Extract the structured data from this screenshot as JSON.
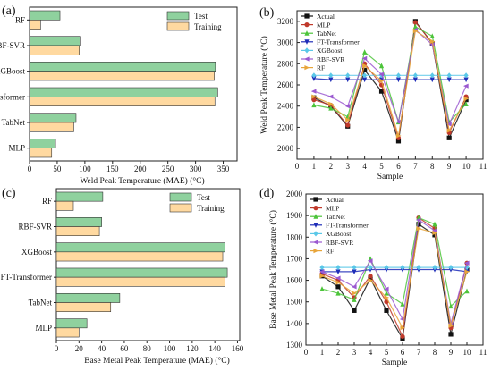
{
  "panel_labels": [
    "(a)",
    "(b)",
    "(c)",
    "(d)"
  ],
  "colors": {
    "test": "#8fd19e",
    "training": "#ffd9a0",
    "frame": "#222222",
    "series": {
      "Actual": "#111111",
      "MLP": "#c0392b",
      "TabNet": "#4cc43a",
      "FT-Transformer": "#1f2db8",
      "XGBoost": "#5ac8e8",
      "RBF-SVR": "#9b59d0",
      "RF": "#e8a53a"
    }
  },
  "chart_data": [
    {
      "type": "bar",
      "orientation": "horizontal",
      "xlabel": "Weld Peak Temperature (MAE) (°C)",
      "categories": [
        "RF",
        "RBF-SVR",
        "XGBoost",
        "FT-Transformer",
        "TabNet",
        "MLP"
      ],
      "series": [
        {
          "name": "Test",
          "values": [
            55,
            91,
            336,
            340,
            84,
            47
          ]
        },
        {
          "name": "Training",
          "values": [
            20,
            90,
            334,
            335,
            80,
            40
          ]
        }
      ],
      "xlim": [
        0,
        375
      ],
      "xticks": [
        0,
        50,
        100,
        150,
        200,
        250,
        300,
        350
      ],
      "legend": "top-right"
    },
    {
      "type": "line",
      "xlabel": "Sample",
      "ylabel": "Weld Peak Temperature (°C)",
      "x": [
        1,
        2,
        3,
        4,
        5,
        6,
        7,
        8,
        9,
        10
      ],
      "xlim": [
        0,
        11
      ],
      "ylim": [
        1900,
        3300
      ],
      "xticks": [
        0,
        1,
        2,
        3,
        4,
        5,
        6,
        7,
        8,
        9,
        10,
        11
      ],
      "yticks": [
        2000,
        2200,
        2400,
        2600,
        2800,
        3000,
        3200
      ],
      "series": [
        {
          "name": "Actual",
          "values": [
            2480,
            2400,
            2210,
            2740,
            2540,
            2070,
            3200,
            2990,
            2100,
            2460
          ]
        },
        {
          "name": "MLP",
          "values": [
            2460,
            2410,
            2220,
            2800,
            2600,
            2100,
            3190,
            3000,
            2150,
            2490
          ]
        },
        {
          "name": "TabNet",
          "values": [
            2410,
            2380,
            2300,
            2910,
            2780,
            2250,
            3150,
            3060,
            2250,
            2420
          ]
        },
        {
          "name": "FT-Transformer",
          "values": [
            2660,
            2650,
            2650,
            2650,
            2650,
            2650,
            2650,
            2650,
            2650,
            2650
          ]
        },
        {
          "name": "XGBoost",
          "values": [
            2690,
            2690,
            2690,
            2690,
            2690,
            2690,
            2690,
            2690,
            2690,
            2690
          ]
        },
        {
          "name": "RBF-SVR",
          "values": [
            2540,
            2490,
            2400,
            2850,
            2700,
            2250,
            3120,
            2980,
            2230,
            2590
          ]
        },
        {
          "name": "RF",
          "values": [
            2490,
            2420,
            2270,
            2780,
            2640,
            2120,
            3110,
            3010,
            2170,
            2470
          ]
        }
      ],
      "legend": "top-left"
    },
    {
      "type": "bar",
      "orientation": "horizontal",
      "xlabel": "Base Metal Peak Temperature (MAE) (°C)",
      "categories": [
        "RF",
        "RBF-SVR",
        "XGBoost",
        "FT-Transformer",
        "TabNet",
        "MLP"
      ],
      "series": [
        {
          "name": "Test",
          "values": [
            41,
            40,
            149,
            151,
            56,
            27
          ]
        },
        {
          "name": "Training",
          "values": [
            15,
            38,
            147,
            149,
            48,
            20
          ]
        }
      ],
      "xlim": [
        0,
        162
      ],
      "xticks": [
        0,
        20,
        40,
        60,
        80,
        100,
        120,
        140,
        160
      ],
      "legend": "top-right"
    },
    {
      "type": "line",
      "xlabel": "Sample",
      "ylabel": "Base Metal Peak Temperature (°C)",
      "x": [
        1,
        2,
        3,
        4,
        5,
        6,
        7,
        8,
        9,
        10
      ],
      "xlim": [
        0,
        11
      ],
      "ylim": [
        1300,
        2000
      ],
      "xticks": [
        0,
        1,
        2,
        3,
        4,
        5,
        6,
        7,
        8,
        9,
        10,
        11
      ],
      "yticks": [
        1300,
        1400,
        1500,
        1600,
        1700,
        1800,
        1900,
        2000
      ],
      "series": [
        {
          "name": "Actual",
          "values": [
            1620,
            1570,
            1460,
            1610,
            1460,
            1330,
            1860,
            1810,
            1350,
            1650
          ]
        },
        {
          "name": "MLP",
          "values": [
            1630,
            1600,
            1520,
            1620,
            1500,
            1340,
            1890,
            1840,
            1380,
            1680
          ]
        },
        {
          "name": "TabNet",
          "values": [
            1560,
            1540,
            1510,
            1700,
            1540,
            1490,
            1890,
            1860,
            1480,
            1550
          ]
        },
        {
          "name": "FT-Transformer",
          "values": [
            1640,
            1640,
            1640,
            1650,
            1650,
            1650,
            1650,
            1650,
            1650,
            1640
          ]
        },
        {
          "name": "XGBoost",
          "values": [
            1660,
            1660,
            1660,
            1660,
            1660,
            1660,
            1660,
            1660,
            1660,
            1660
          ]
        },
        {
          "name": "RBF-SVR",
          "values": [
            1640,
            1610,
            1570,
            1690,
            1560,
            1420,
            1880,
            1830,
            1400,
            1680
          ]
        },
        {
          "name": "RF",
          "values": [
            1620,
            1590,
            1540,
            1600,
            1520,
            1380,
            1840,
            1820,
            1390,
            1640
          ]
        }
      ],
      "legend": "top-left"
    }
  ]
}
